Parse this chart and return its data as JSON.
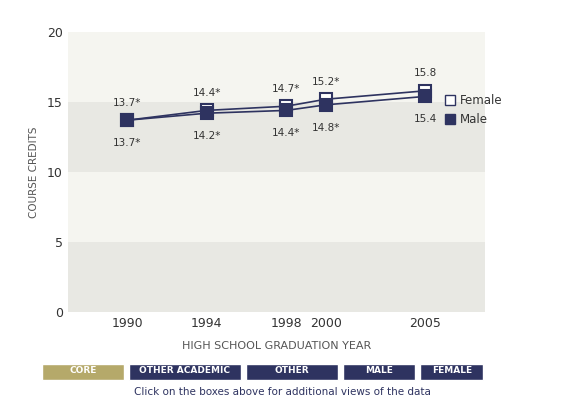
{
  "years": [
    1990,
    1994,
    1998,
    2000,
    2005
  ],
  "female_values": [
    13.7,
    14.4,
    14.7,
    15.2,
    15.8
  ],
  "male_values": [
    13.7,
    14.2,
    14.4,
    14.8,
    15.4
  ],
  "female_labels": [
    "13.7*",
    "14.4*",
    "14.7*",
    "15.2*",
    "15.8"
  ],
  "male_labels": [
    "13.7*",
    "14.2*",
    "14.4*",
    "14.8*",
    "15.4"
  ],
  "female_color": "#2e3360",
  "male_color": "#2e3360",
  "female_marker": "s",
  "male_marker": "s",
  "female_marker_facecolor": "white",
  "male_marker_facecolor": "#2e3360",
  "line_color": "#2e3360",
  "ylabel": "COURSE CREDITS",
  "xlabel": "HIGH SCHOOL GRADUATION YEAR",
  "ylim": [
    0,
    20
  ],
  "yticks": [
    0,
    5,
    10,
    15,
    20
  ],
  "bg_color": "#f5f5f0",
  "stripe_color": "#e8e8e3",
  "legend_female": "Female",
  "legend_male": "Male",
  "footer_tabs": [
    "CORE",
    "OTHER ACADEMIC",
    "OTHER",
    "MALE",
    "FEMALE"
  ],
  "footer_tab_colors": [
    "#b5a96a",
    "#2e3360",
    "#2e3360",
    "#2e3360",
    "#2e3360"
  ],
  "footer_text": "Click on the boxes above for additional views of the data",
  "footer_text_color": "#2e3360",
  "marker_size": 8
}
